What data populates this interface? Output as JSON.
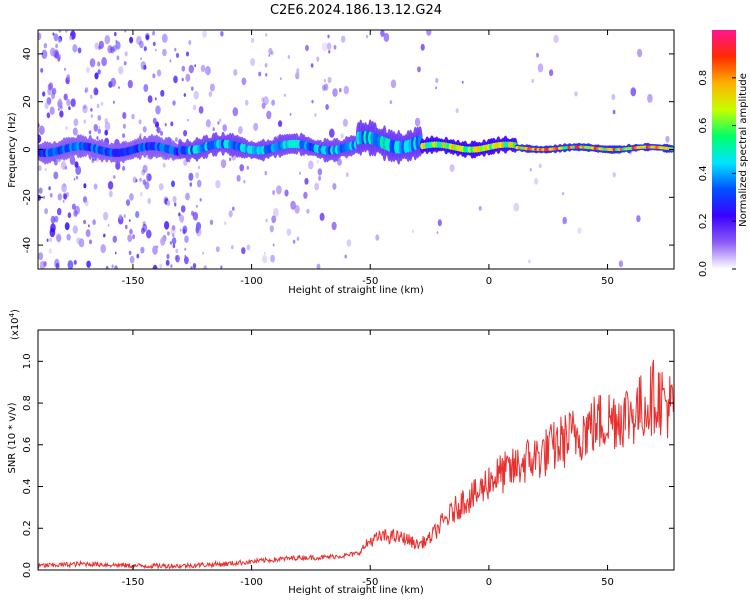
{
  "title": "C2E6.2024.186.13.12.G24",
  "chart_data": [
    {
      "type": "heatmap",
      "xlabel": "Height of straight line (km)",
      "ylabel": "Frequency (Hz)",
      "xlim": [
        -190,
        78
      ],
      "ylim": [
        -50,
        50
      ],
      "xticks": [
        -150,
        -100,
        -50,
        0,
        50
      ],
      "yticks": [
        -40,
        -20,
        0,
        20,
        40
      ],
      "colorbar": {
        "label": "Normalized spectral amplitude",
        "range": [
          0.0,
          1.0
        ],
        "ticks": [
          "0.0",
          "0.2",
          "0.4",
          "0.6",
          "0.8"
        ],
        "colors": [
          "#ffffff",
          "#8b5cf6",
          "#3b00ff",
          "#0050ff",
          "#00e5ff",
          "#00ff6a",
          "#c8ff00",
          "#ffb000",
          "#ff2a00",
          "#ff1493"
        ]
      },
      "band_segments": [
        {
          "x_start": -190,
          "x_end": -130,
          "center_hz": 0,
          "halfwidth_hz": 4,
          "peak_amplitude": 0.4
        },
        {
          "x_start": -130,
          "x_end": -55,
          "center_hz": 1,
          "halfwidth_hz": 4,
          "peak_amplitude": 0.5
        },
        {
          "x_start": -55,
          "x_end": -28,
          "center_hz": 3,
          "halfwidth_hz": 6,
          "peak_amplitude": 0.55
        },
        {
          "x_start": -28,
          "x_end": 12,
          "center_hz": 1,
          "halfwidth_hz": 3,
          "peak_amplitude": 0.8
        },
        {
          "x_start": 12,
          "x_end": 78,
          "center_hz": 0.5,
          "halfwidth_hz": 1.5,
          "peak_amplitude": 0.95
        }
      ]
    },
    {
      "type": "line",
      "xlabel": "Height of straight line (km)",
      "ylabel": "SNR (10 * v/v)",
      "yscale_label": "(x10",
      "yscale_exponent": "4",
      "xlim": [
        -190,
        78
      ],
      "ylim": [
        0.0,
        1.15
      ],
      "xticks": [
        -150,
        -100,
        -50,
        0,
        50
      ],
      "yticks": [
        "0.0",
        "0.2",
        "0.4",
        "0.6",
        "0.8",
        "1.0"
      ],
      "color": "#e8302f",
      "x": [
        -190,
        -170,
        -150,
        -130,
        -110,
        -90,
        -80,
        -70,
        -60,
        -55,
        -50,
        -45,
        -40,
        -35,
        -30,
        -25,
        -20,
        -15,
        -10,
        -5,
        0,
        5,
        10,
        15,
        20,
        25,
        30,
        35,
        40,
        45,
        50,
        55,
        60,
        65,
        70,
        75,
        78
      ],
      "y": [
        0.02,
        0.03,
        0.02,
        0.02,
        0.03,
        0.05,
        0.06,
        0.06,
        0.07,
        0.08,
        0.14,
        0.16,
        0.16,
        0.15,
        0.12,
        0.15,
        0.22,
        0.28,
        0.34,
        0.36,
        0.43,
        0.46,
        0.48,
        0.52,
        0.54,
        0.57,
        0.61,
        0.64,
        0.67,
        0.7,
        0.72,
        0.74,
        0.75,
        0.78,
        0.84,
        0.8,
        0.76
      ]
    }
  ]
}
